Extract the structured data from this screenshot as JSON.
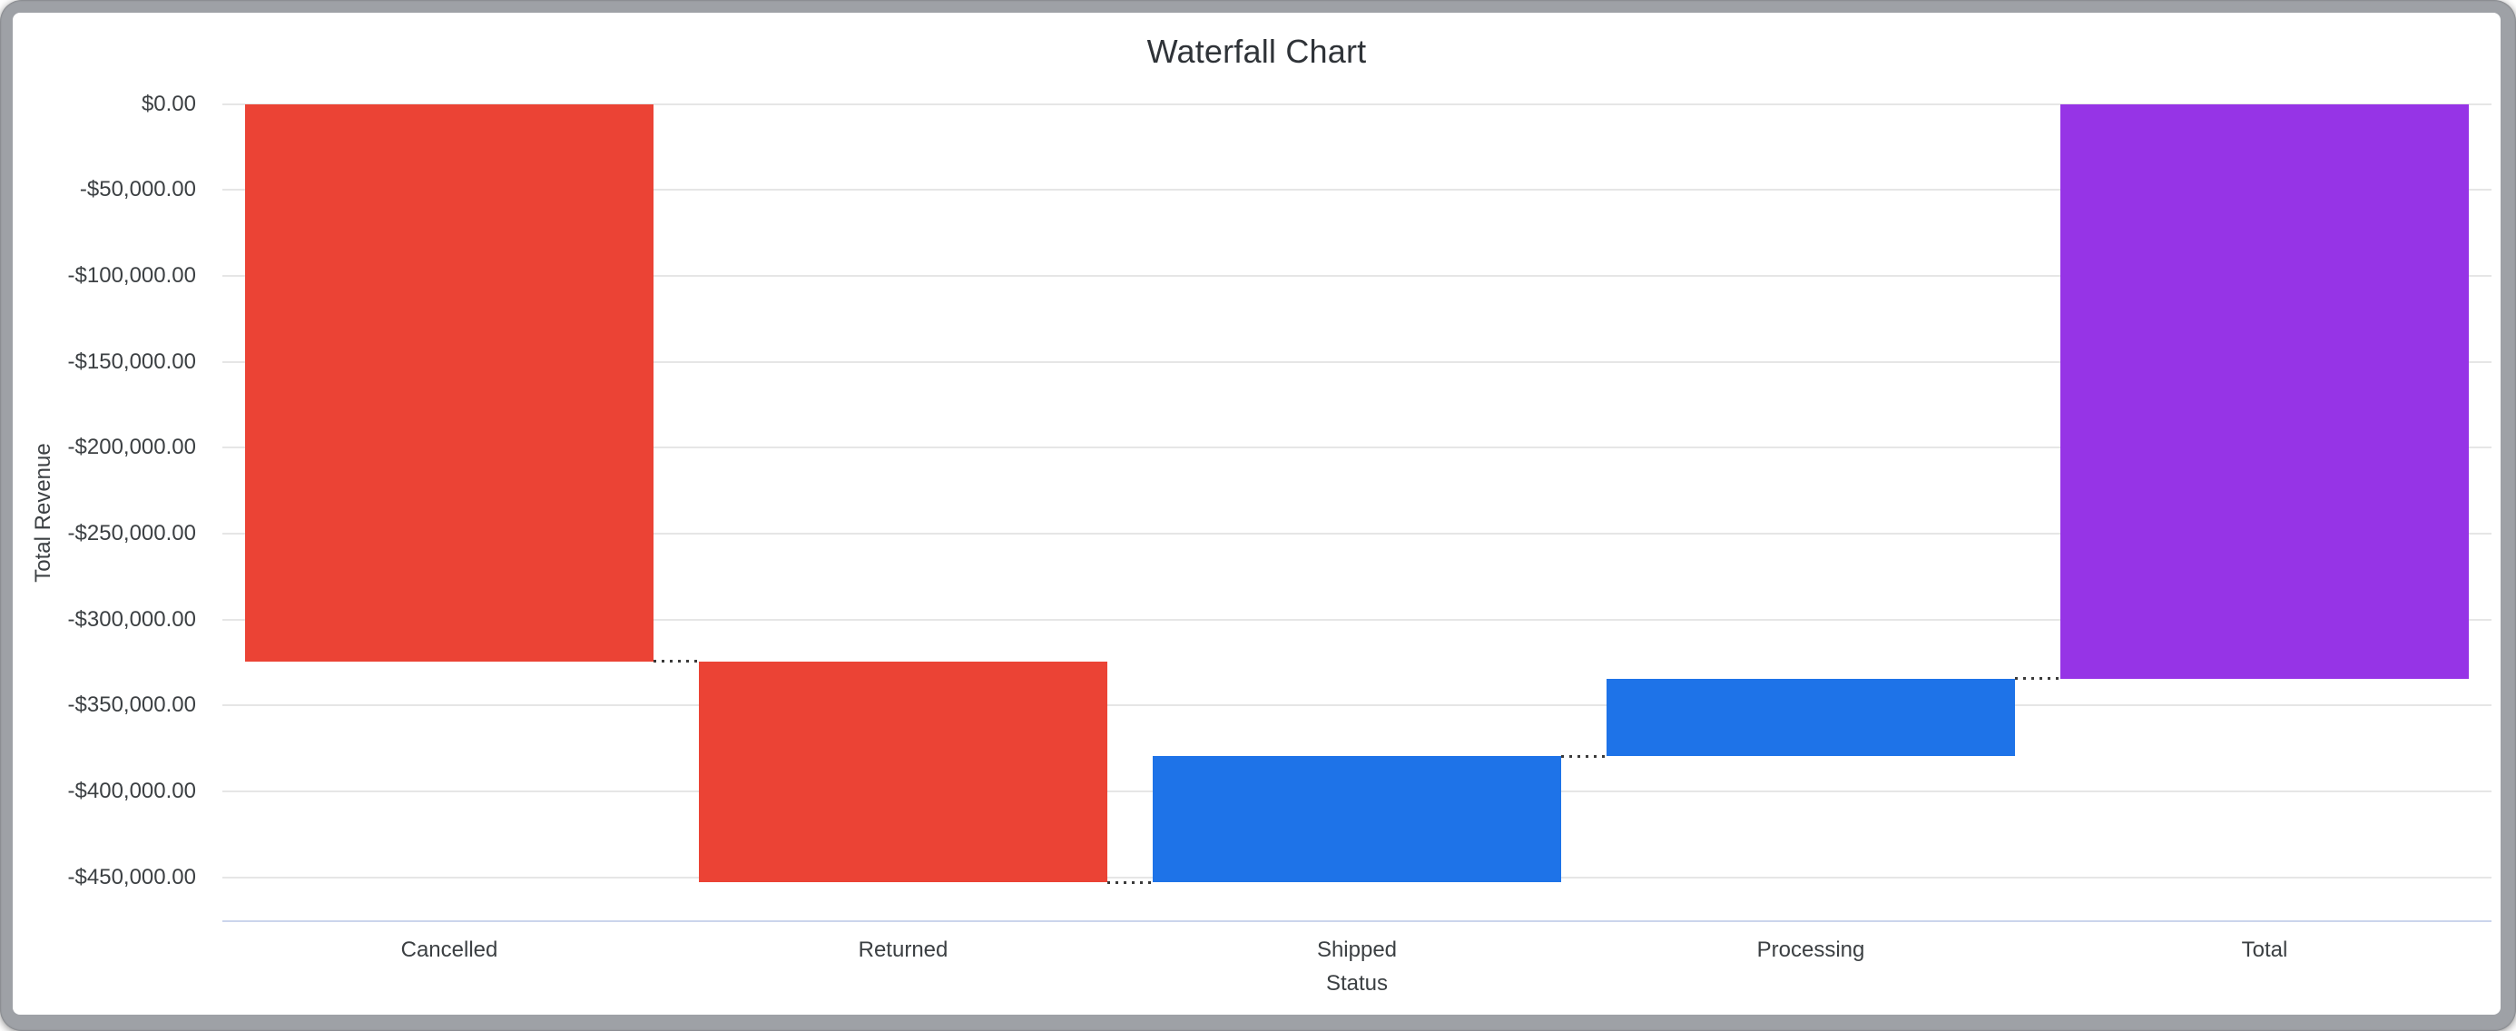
{
  "window": {
    "frame_color": "#9ea1a6",
    "content_background": "#ffffff"
  },
  "chart_data": {
    "type": "waterfall",
    "title": "Waterfall Chart",
    "xlabel": "Status",
    "ylabel": "Total Revenue",
    "legend": "none",
    "grid": true,
    "categories": [
      "Cancelled",
      "Returned",
      "Shipped",
      "Processing",
      "Total"
    ],
    "bars": [
      {
        "name": "Cancelled",
        "start": 0,
        "end": -324500,
        "delta": -324500,
        "role": "decrease"
      },
      {
        "name": "Returned",
        "start": -324500,
        "end": -453000,
        "delta": -128500,
        "role": "decrease"
      },
      {
        "name": "Shipped",
        "start": -453000,
        "end": -379500,
        "delta": 73500,
        "role": "increase"
      },
      {
        "name": "Processing",
        "start": -379500,
        "end": -334500,
        "delta": 45000,
        "role": "increase"
      },
      {
        "name": "Total",
        "start": 0,
        "end": -334500,
        "delta": -334500,
        "role": "total"
      }
    ],
    "y_ticks": [
      {
        "value": 0,
        "label": "$0.00"
      },
      {
        "value": -50000,
        "label": "-$50,000.00"
      },
      {
        "value": -100000,
        "label": "-$100,000.00"
      },
      {
        "value": -150000,
        "label": "-$150,000.00"
      },
      {
        "value": -200000,
        "label": "-$200,000.00"
      },
      {
        "value": -250000,
        "label": "-$250,000.00"
      },
      {
        "value": -300000,
        "label": "-$300,000.00"
      },
      {
        "value": -350000,
        "label": "-$350,000.00"
      },
      {
        "value": -400000,
        "label": "-$400,000.00"
      },
      {
        "value": -450000,
        "label": "-$450,000.00"
      }
    ],
    "ylim": [
      -475600,
      0
    ],
    "colors": {
      "decrease": "#eb4335",
      "increase": "#1e73e8",
      "total": "#9634e6"
    },
    "gridline_color": "#e6e6e6",
    "baseline_color": "#cbd5ec",
    "connector_color": "#3a3a3a",
    "text_color": "#3c4043",
    "title_color": "#2f3338"
  }
}
